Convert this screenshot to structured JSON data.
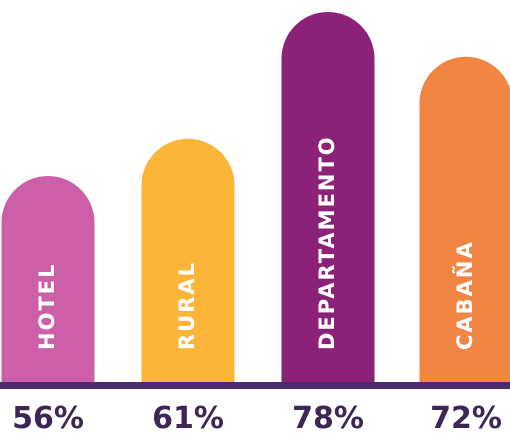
{
  "chart_data": {
    "type": "bar",
    "categories": [
      "HOTEL",
      "RURAL",
      "DEPARTAMENTO",
      "CABAÑA"
    ],
    "values": [
      56,
      61,
      78,
      72
    ],
    "value_labels": [
      "56%",
      "61%",
      "78%",
      "72%"
    ],
    "colors": [
      "#cd5fa9",
      "#fbb63a",
      "#8b2278",
      "#f08544"
    ],
    "baseline_color": "#4b2b6b",
    "value_label_color": "#3c2755",
    "title": "",
    "xlabel": "",
    "ylabel": "",
    "ylim": [
      0,
      80
    ],
    "grid": false,
    "legend": "none"
  }
}
